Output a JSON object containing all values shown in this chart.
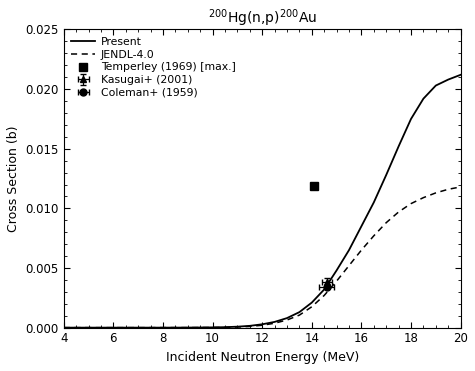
{
  "title": "$^{200}$Hg(n,p)$^{200}$Au",
  "xlabel": "Incident Neutron Energy (MeV)",
  "ylabel": "Cross Section (b)",
  "xlim": [
    4,
    20
  ],
  "ylim": [
    0,
    0.025
  ],
  "xticks": [
    4,
    6,
    8,
    10,
    12,
    14,
    16,
    18,
    20
  ],
  "yticks": [
    0.0,
    0.005,
    0.01,
    0.015,
    0.02,
    0.025
  ],
  "present_x": [
    4,
    5,
    6,
    7,
    8,
    9,
    10,
    10.5,
    11,
    11.5,
    12,
    12.5,
    13,
    13.5,
    14,
    14.5,
    15,
    15.5,
    16,
    16.5,
    17,
    17.5,
    18,
    18.5,
    19,
    19.5,
    20
  ],
  "present_y": [
    0,
    0,
    0,
    0,
    1e-06,
    5e-06,
    2e-05,
    4e-05,
    8e-05,
    0.00015,
    0.00028,
    0.00048,
    0.0008,
    0.0013,
    0.0021,
    0.0032,
    0.0048,
    0.0065,
    0.0085,
    0.0105,
    0.0128,
    0.0152,
    0.0175,
    0.0192,
    0.0203,
    0.0208,
    0.0212
  ],
  "jendl_x": [
    4,
    5,
    6,
    7,
    8,
    9,
    10,
    10.5,
    11,
    11.5,
    12,
    12.5,
    13,
    13.5,
    14,
    14.5,
    15,
    15.5,
    16,
    16.5,
    17,
    17.5,
    18,
    18.5,
    19,
    19.5,
    20
  ],
  "jendl_y": [
    0,
    0,
    0,
    0,
    5e-07,
    2e-06,
    1e-05,
    2.2e-05,
    5e-05,
    0.0001,
    0.0002,
    0.00037,
    0.00064,
    0.00105,
    0.00175,
    0.0027,
    0.0039,
    0.0052,
    0.0065,
    0.0077,
    0.0088,
    0.0097,
    0.0104,
    0.0109,
    0.0113,
    0.0116,
    0.0118
  ],
  "kasugai_x": [
    14.6
  ],
  "kasugai_y": [
    0.0038
  ],
  "kasugai_xerr": [
    0.2
  ],
  "kasugai_yerr": [
    0.0004
  ],
  "temperley_x": [
    14.1
  ],
  "temperley_y": [
    0.0119
  ],
  "coleman_x": [
    14.6
  ],
  "coleman_y": [
    0.0034
  ],
  "coleman_xerr": [
    0.3
  ],
  "coleman_yerr": [
    0.00025
  ],
  "legend_labels": [
    "Present",
    "JENDL-4.0",
    "Kasugai+ (2001)",
    "Temperley (1969) [max.]",
    "Coleman+ (1959)"
  ],
  "bg_color": "#ffffff"
}
